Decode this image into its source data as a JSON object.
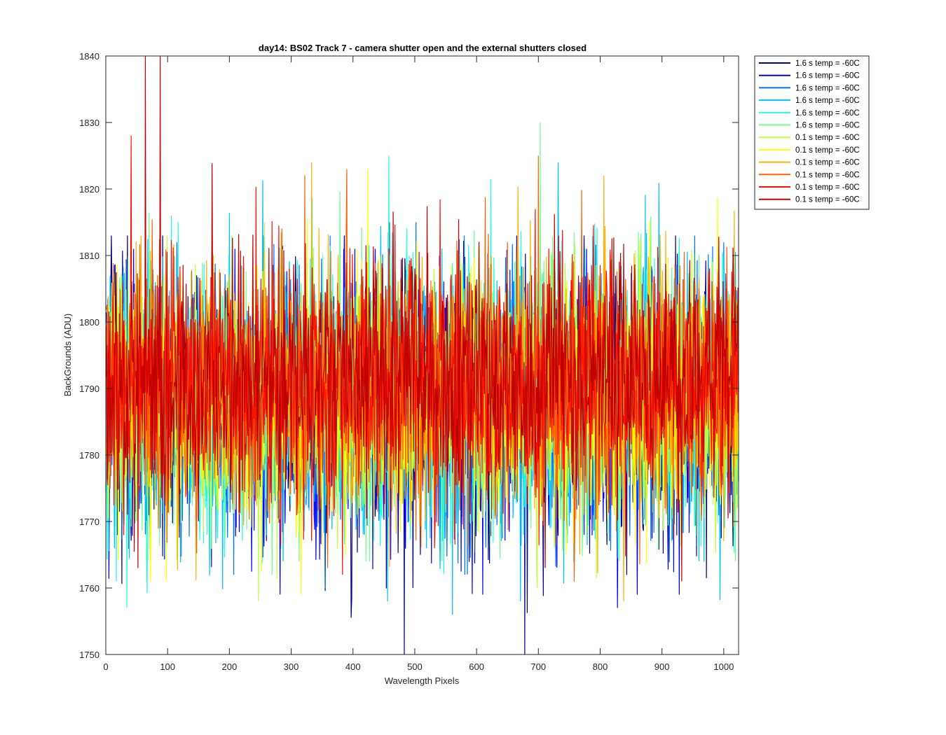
{
  "chart_data": {
    "type": "line",
    "title": "day14: BS02  Track 7 - camera shutter open and the external shutters closed",
    "xlabel": "Wavelength Pixels",
    "ylabel": "BackGrounds (ADU)",
    "xlim": [
      0,
      1024
    ],
    "ylim": [
      1750,
      1840
    ],
    "xticks": [
      "0",
      "100",
      "200",
      "300",
      "400",
      "500",
      "600",
      "700",
      "800",
      "900",
      "1000"
    ],
    "yticks": [
      "1750",
      "1760",
      "1770",
      "1780",
      "1790",
      "1800",
      "1810",
      "1820",
      "1830",
      "1840"
    ],
    "grid": false,
    "legend_position": "outside-top-right",
    "n_points": 1024,
    "series": [
      {
        "name": "1.6 s temp = -60C",
        "color": "#00008f",
        "mean": 1787,
        "spread": 10,
        "min": 1750,
        "max": 1815
      },
      {
        "name": "1.6 s temp = -60C",
        "color": "#0000ff",
        "mean": 1787,
        "spread": 10,
        "min": 1757,
        "max": 1813
      },
      {
        "name": "1.6 s temp = -60C",
        "color": "#0070ff",
        "mean": 1787,
        "spread": 10,
        "min": 1760,
        "max": 1815
      },
      {
        "name": "1.6 s temp = -60C",
        "color": "#00bfff",
        "mean": 1788,
        "spread": 10,
        "min": 1756,
        "max": 1824
      },
      {
        "name": "1.6 s temp = -60C",
        "color": "#20ffdf",
        "mean": 1789,
        "spread": 10,
        "min": 1757,
        "max": 1825
      },
      {
        "name": "1.6 s temp = -60C",
        "color": "#6fff8f",
        "mean": 1789,
        "spread": 10,
        "min": 1762,
        "max": 1830
      },
      {
        "name": "0.1 s temp = -60C",
        "color": "#bfff3f",
        "mean": 1788,
        "spread": 9,
        "min": 1758,
        "max": 1815
      },
      {
        "name": "0.1 s temp = -60C",
        "color": "#ffff00",
        "mean": 1788,
        "spread": 9,
        "min": 1759,
        "max": 1823
      },
      {
        "name": "0.1 s temp = -60C",
        "color": "#ffaf00",
        "mean": 1790,
        "spread": 9,
        "min": 1758,
        "max": 1824
      },
      {
        "name": "0.1 s temp = -60C",
        "color": "#ff6000",
        "mean": 1790,
        "spread": 9,
        "min": 1761,
        "max": 1825
      },
      {
        "name": "0.1 s temp = -60C",
        "color": "#ff1000",
        "mean": 1791,
        "spread": 9,
        "min": 1762,
        "max": 1828
      },
      {
        "name": "0.1 s temp = -60C",
        "color": "#bf0000",
        "mean": 1792,
        "spread": 9,
        "min": 1761,
        "max": 1840
      }
    ]
  }
}
